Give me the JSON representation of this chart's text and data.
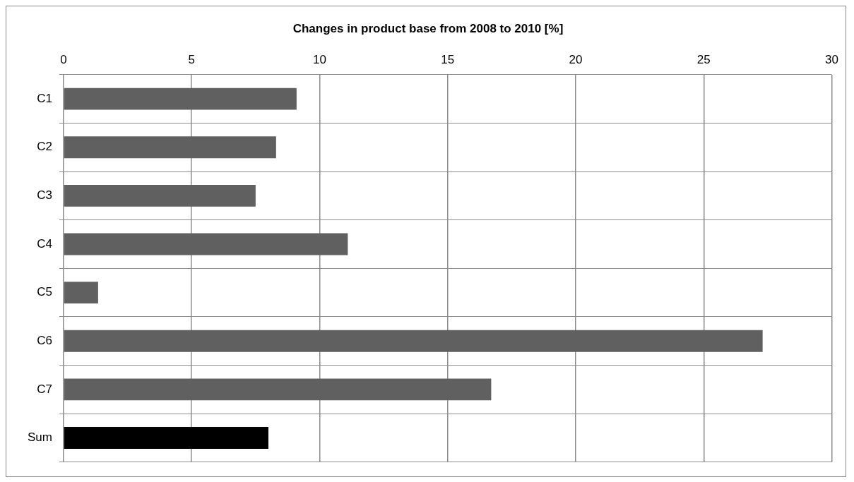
{
  "chart_data": {
    "type": "bar",
    "orientation": "horizontal",
    "title": "Changes in product base from 2008 to 2010 [%]",
    "categories": [
      "C1",
      "C2",
      "C3",
      "C4",
      "C5",
      "C6",
      "C7",
      "Sum"
    ],
    "values": [
      9.1,
      8.3,
      7.5,
      11.1,
      1.35,
      27.3,
      16.7,
      8.0
    ],
    "colors": [
      "#606060",
      "#606060",
      "#606060",
      "#606060",
      "#606060",
      "#606060",
      "#606060",
      "#000000"
    ],
    "xlim": [
      0,
      30
    ],
    "xticks": [
      0,
      5,
      10,
      15,
      20,
      25,
      30
    ],
    "grid": true,
    "legend": false
  }
}
